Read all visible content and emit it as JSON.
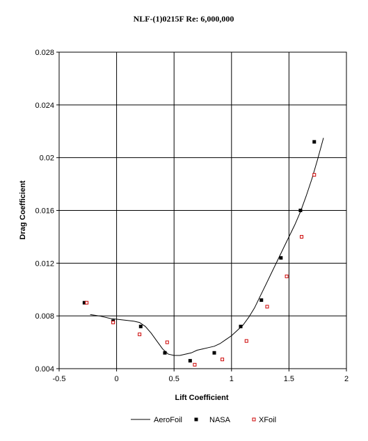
{
  "chart_data": {
    "type": "scatter",
    "title": "NLF-(1)0215F Re: 6,000,000",
    "xlabel": "Lift Coefficient",
    "ylabel": "Drag Coefficient",
    "xlim": [
      -0.5,
      2
    ],
    "ylim": [
      0.004,
      0.028
    ],
    "xticks": [
      -0.5,
      0,
      0.5,
      1,
      1.5,
      2
    ],
    "xtick_labels": [
      "-0.5",
      "0",
      "0.5",
      "1",
      "1.5",
      "2"
    ],
    "yticks": [
      0.004,
      0.008,
      0.012,
      0.016,
      0.02,
      0.024,
      0.028
    ],
    "ytick_labels": [
      "0.004",
      "0.008",
      "0.012",
      "0.016",
      "0.02",
      "0.024",
      "0.028"
    ],
    "grid": true,
    "legend_position": "bottom",
    "series": [
      {
        "name": "AeroFoil",
        "kind": "line",
        "color": "#000000",
        "points": [
          [
            -0.23,
            0.0081
          ],
          [
            -0.15,
            0.008
          ],
          [
            -0.05,
            0.0078
          ],
          [
            0.05,
            0.0077
          ],
          [
            0.15,
            0.0076
          ],
          [
            0.2,
            0.0075
          ],
          [
            0.25,
            0.0072
          ],
          [
            0.3,
            0.0067
          ],
          [
            0.35,
            0.0061
          ],
          [
            0.4,
            0.0055
          ],
          [
            0.45,
            0.0051
          ],
          [
            0.5,
            0.005
          ],
          [
            0.55,
            0.005
          ],
          [
            0.6,
            0.0051
          ],
          [
            0.65,
            0.0052
          ],
          [
            0.7,
            0.0054
          ],
          [
            0.75,
            0.0055
          ],
          [
            0.8,
            0.0056
          ],
          [
            0.85,
            0.0057
          ],
          [
            0.9,
            0.0059
          ],
          [
            0.95,
            0.0062
          ],
          [
            1.0,
            0.0065
          ],
          [
            1.05,
            0.0069
          ],
          [
            1.1,
            0.0073
          ],
          [
            1.15,
            0.0079
          ],
          [
            1.2,
            0.0086
          ],
          [
            1.25,
            0.0095
          ],
          [
            1.3,
            0.0104
          ],
          [
            1.35,
            0.0113
          ],
          [
            1.4,
            0.0122
          ],
          [
            1.45,
            0.0131
          ],
          [
            1.5,
            0.014
          ],
          [
            1.55,
            0.0149
          ],
          [
            1.6,
            0.0159
          ],
          [
            1.65,
            0.0171
          ],
          [
            1.7,
            0.0184
          ],
          [
            1.75,
            0.0199
          ],
          [
            1.8,
            0.0215
          ]
        ]
      },
      {
        "name": "NASA",
        "kind": "marker",
        "marker": "filled-square",
        "color": "#000000",
        "points": [
          [
            -0.28,
            0.009
          ],
          [
            -0.03,
            0.0076
          ],
          [
            0.21,
            0.0072
          ],
          [
            0.42,
            0.0052
          ],
          [
            0.64,
            0.0046
          ],
          [
            0.85,
            0.0052
          ],
          [
            1.08,
            0.0072
          ],
          [
            1.26,
            0.0092
          ],
          [
            1.43,
            0.0124
          ],
          [
            1.6,
            0.016
          ],
          [
            1.72,
            0.0212
          ]
        ]
      },
      {
        "name": "XFoil",
        "kind": "marker",
        "marker": "open-square",
        "color": "#cc0000",
        "points": [
          [
            -0.26,
            0.009
          ],
          [
            -0.03,
            0.0075
          ],
          [
            0.2,
            0.0066
          ],
          [
            0.44,
            0.006
          ],
          [
            0.68,
            0.0043
          ],
          [
            0.92,
            0.0047
          ],
          [
            1.13,
            0.0061
          ],
          [
            1.31,
            0.0087
          ],
          [
            1.48,
            0.011
          ],
          [
            1.61,
            0.014
          ],
          [
            1.72,
            0.0187
          ]
        ]
      }
    ]
  }
}
